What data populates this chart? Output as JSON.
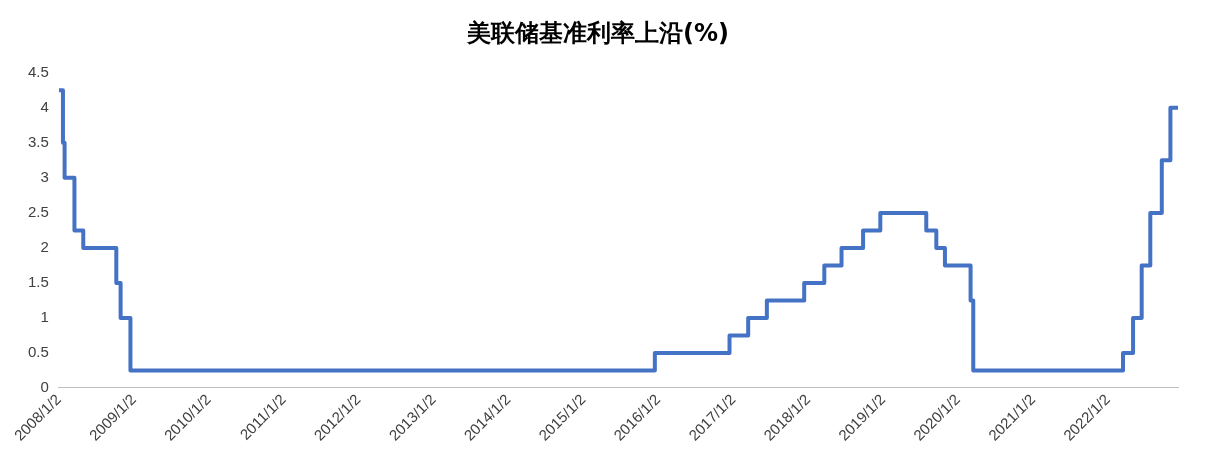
{
  "chart_data": {
    "type": "step",
    "title": "美联储基准利率上沿(%)",
    "x": [
      "2008-01-02",
      "2008-01-22",
      "2008-01-30",
      "2008-03-18",
      "2008-04-30",
      "2008-10-08",
      "2008-10-29",
      "2008-12-16",
      "2015-12-16",
      "2016-12-14",
      "2017-03-15",
      "2017-06-14",
      "2017-12-13",
      "2018-03-21",
      "2018-06-13",
      "2018-09-26",
      "2018-12-19",
      "2019-07-31",
      "2019-09-18",
      "2019-10-30",
      "2020-03-03",
      "2020-03-16",
      "2022-03-16",
      "2022-05-04",
      "2022-06-15",
      "2022-07-27",
      "2022-09-21",
      "2022-11-02",
      "2022-12-09"
    ],
    "series": [
      {
        "color": "#4472c4",
        "values": [
          4.25,
          3.5,
          3.0,
          2.25,
          2.0,
          1.5,
          1.0,
          0.25,
          0.5,
          0.75,
          1.0,
          1.25,
          1.5,
          1.75,
          2.0,
          2.25,
          2.5,
          2.25,
          2.0,
          1.75,
          1.25,
          0.25,
          0.5,
          1.0,
          1.75,
          2.5,
          3.25,
          4.0,
          4.0
        ]
      }
    ],
    "xlim": [
      "2008-01-02",
      "2022-12-09"
    ],
    "xticks": [
      {
        "value": "2008-01-02",
        "label": "2008/1/2"
      },
      {
        "value": "2009-01-02",
        "label": "2009/1/2"
      },
      {
        "value": "2010-01-02",
        "label": "2010/1/2"
      },
      {
        "value": "2011-01-02",
        "label": "2011/1/2"
      },
      {
        "value": "2012-01-02",
        "label": "2012/1/2"
      },
      {
        "value": "2013-01-02",
        "label": "2013/1/2"
      },
      {
        "value": "2014-01-02",
        "label": "2014/1/2"
      },
      {
        "value": "2015-01-02",
        "label": "2015/1/2"
      },
      {
        "value": "2016-01-02",
        "label": "2016/1/2"
      },
      {
        "value": "2017-01-02",
        "label": "2017/1/2"
      },
      {
        "value": "2018-01-02",
        "label": "2018/1/2"
      },
      {
        "value": "2019-01-02",
        "label": "2019/1/2"
      },
      {
        "value": "2020-01-02",
        "label": "2020/1/2"
      },
      {
        "value": "2021-01-02",
        "label": "2021/1/2"
      },
      {
        "value": "2022-01-02",
        "label": "2022/1/2"
      }
    ],
    "ylim": [
      0,
      4.5
    ],
    "yticks": [
      0,
      0.5,
      1,
      1.5,
      2,
      2.5,
      3,
      3.5,
      4,
      4.5
    ],
    "grid": false,
    "legend": false,
    "marker": "none",
    "line_style": "solid"
  }
}
